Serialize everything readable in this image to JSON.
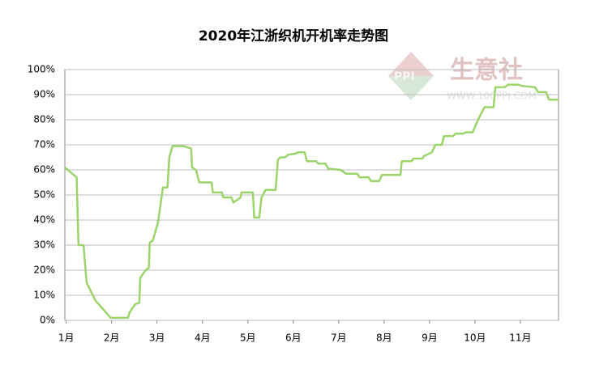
{
  "chart_data": {
    "type": "line",
    "title": "2020年江浙织机开机率走势图",
    "watermark": {
      "brand": "生意社",
      "url": "WWW.100PPI.COM"
    },
    "color": "#9bd46a",
    "grid": true,
    "x": [
      0.97,
      1.23,
      1.27,
      1.38,
      1.45,
      1.64,
      1.98,
      2.36,
      2.39,
      2.52,
      2.61,
      2.63,
      2.75,
      2.82,
      2.84,
      2.91,
      3.02,
      3.13,
      3.23,
      3.27,
      3.34,
      3.57,
      3.75,
      3.77,
      3.86,
      3.93,
      4.2,
      4.23,
      4.43,
      4.46,
      4.64,
      4.68,
      4.84,
      4.86,
      5.11,
      5.14,
      5.25,
      5.3,
      5.39,
      5.61,
      5.66,
      5.71,
      5.82,
      5.88,
      6.05,
      6.11,
      6.25,
      6.3,
      6.5,
      6.55,
      6.71,
      6.77,
      7.04,
      7.16,
      7.41,
      7.46,
      7.66,
      7.71,
      7.89,
      7.95,
      8.36,
      8.39,
      8.61,
      8.64,
      8.84,
      8.88,
      9.05,
      9.13,
      9.27,
      9.32,
      9.52,
      9.57,
      9.75,
      9.8,
      9.95,
      10.07,
      10.21,
      10.41,
      10.45,
      10.66,
      10.73,
      10.96,
      11.02,
      11.32,
      11.39,
      11.57,
      11.63,
      11.84
    ],
    "values": [
      61,
      57,
      30,
      30,
      15,
      8,
      1,
      1,
      3,
      6.5,
      7,
      17,
      20,
      21,
      31,
      32,
      39,
      53,
      53,
      65,
      69.5,
      69.5,
      68.5,
      61,
      60,
      55,
      55,
      51,
      51,
      49,
      49,
      47,
      49,
      51,
      51,
      41,
      41,
      49,
      52,
      52,
      64,
      65,
      65,
      66,
      66.5,
      67,
      67,
      63.5,
      63.5,
      62.5,
      62.5,
      60.5,
      60,
      58.5,
      58.5,
      57,
      57,
      55.5,
      55.5,
      58,
      58,
      63.5,
      63.5,
      64.5,
      64.5,
      65.5,
      67,
      70,
      70,
      73.5,
      73.5,
      74.5,
      74.5,
      75,
      75,
      80,
      85,
      85,
      93,
      93,
      94,
      94,
      93.5,
      93,
      91,
      91,
      88,
      88
    ],
    "xlim": [
      0.97,
      11.84
    ],
    "xticks": [
      {
        "value": 1,
        "label": "1月"
      },
      {
        "value": 2,
        "label": "2月"
      },
      {
        "value": 3,
        "label": "3月"
      },
      {
        "value": 4,
        "label": "4月"
      },
      {
        "value": 5,
        "label": "5月"
      },
      {
        "value": 6,
        "label": "6月"
      },
      {
        "value": 7,
        "label": "7月"
      },
      {
        "value": 8,
        "label": "8月"
      },
      {
        "value": 9,
        "label": "9月"
      },
      {
        "value": 10,
        "label": "10月"
      },
      {
        "value": 11,
        "label": "11月"
      }
    ],
    "ylim": [
      0,
      100
    ],
    "yticks": [
      {
        "value": 0,
        "label": "0%"
      },
      {
        "value": 10,
        "label": "10%"
      },
      {
        "value": 20,
        "label": "20%"
      },
      {
        "value": 30,
        "label": "30%"
      },
      {
        "value": 40,
        "label": "40%"
      },
      {
        "value": 50,
        "label": "50%"
      },
      {
        "value": 60,
        "label": "60%"
      },
      {
        "value": 70,
        "label": "70%"
      },
      {
        "value": 80,
        "label": "80%"
      },
      {
        "value": 90,
        "label": "90%"
      },
      {
        "value": 100,
        "label": "100%"
      }
    ]
  }
}
